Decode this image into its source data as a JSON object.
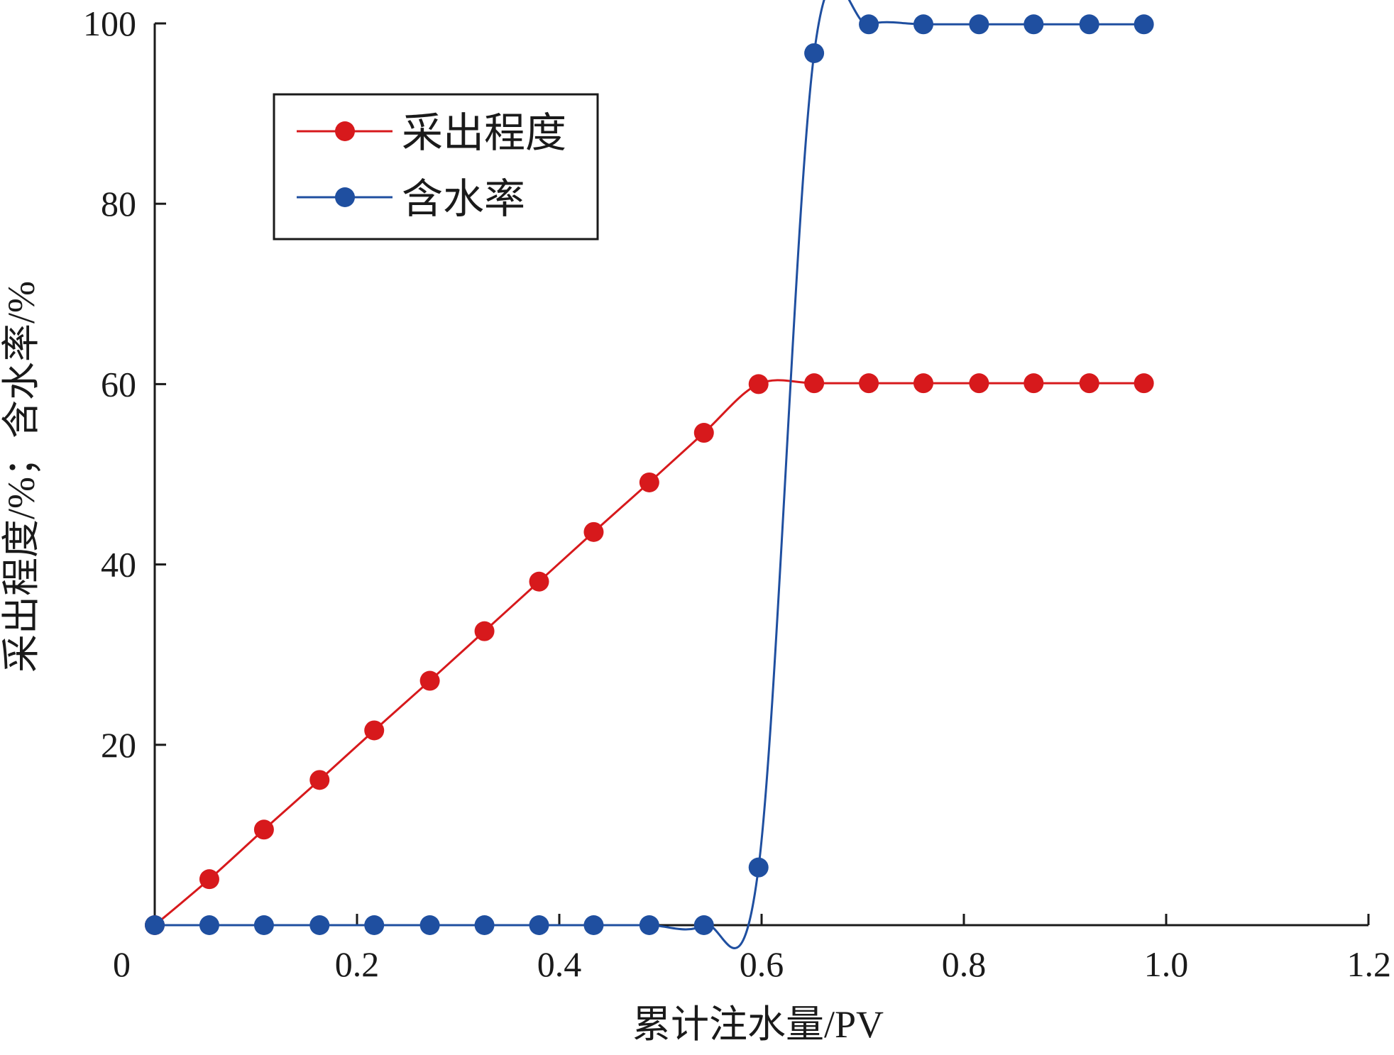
{
  "chart_data": {
    "type": "line",
    "xlabel": "累计注水量/PV",
    "ylabel": "采出程度/%；含水率/%",
    "xlim": [
      0,
      1.2
    ],
    "ylim": [
      0,
      100
    ],
    "x_ticks": [
      0,
      0.2,
      0.4,
      0.6,
      0.8,
      1.0,
      1.2
    ],
    "x_tick_labels": [
      "0",
      "0.2",
      "0.4",
      "0.6",
      "0.8",
      "1.0",
      "1.2"
    ],
    "y_ticks": [
      20,
      40,
      60,
      80,
      100
    ],
    "y_tick_labels": [
      "20",
      "40",
      "60",
      "80",
      "100"
    ],
    "grid": false,
    "legend_position": "upper-left",
    "series": [
      {
        "name": "采出程度",
        "color": "#d7191c",
        "marker": "circle",
        "x": [
          0,
          0.054,
          0.108,
          0.163,
          0.217,
          0.272,
          0.326,
          0.38,
          0.434,
          0.489,
          0.543,
          0.597,
          0.652,
          0.706,
          0.76,
          0.815,
          0.869,
          0.924,
          0.978
        ],
        "y": [
          0,
          5.1,
          10.6,
          16.1,
          21.6,
          27.1,
          32.6,
          38.1,
          43.6,
          49.1,
          54.6,
          60.0,
          60.1,
          60.1,
          60.1,
          60.1,
          60.1,
          60.1,
          60.1
        ]
      },
      {
        "name": "含水率",
        "color": "#1f4fa0",
        "marker": "circle",
        "x": [
          0,
          0.054,
          0.108,
          0.163,
          0.217,
          0.272,
          0.326,
          0.38,
          0.434,
          0.489,
          0.543,
          0.597,
          0.652,
          0.706,
          0.76,
          0.815,
          0.869,
          0.924,
          0.978
        ],
        "y": [
          0,
          0,
          0,
          0,
          0,
          0,
          0,
          0,
          0,
          0,
          0,
          6.4,
          96.7,
          99.9,
          99.9,
          99.9,
          99.9,
          99.9,
          99.9
        ]
      }
    ]
  }
}
